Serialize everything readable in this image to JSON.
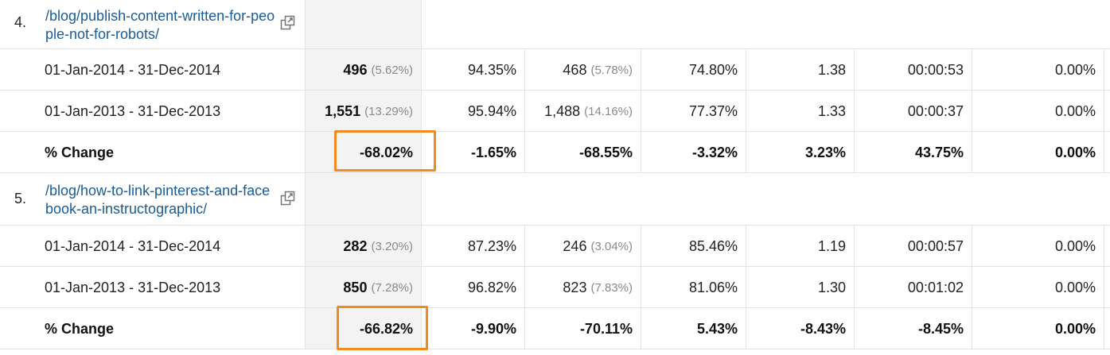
{
  "accent_color": "#f28a1e",
  "link_color": "#1a5c96",
  "groups": [
    {
      "rank": "4.",
      "page": "/blog/publish-content-written-for-people-not-for-robots/",
      "rows": [
        {
          "label": "01-Jan-2014 - 31-Dec-2014",
          "sessions": "496",
          "sessions_pct": "(5.62%)",
          "c2": "94.35%",
          "c3": "468",
          "c3_pct": "(5.78%)",
          "c4": "74.80%",
          "c5": "1.38",
          "c6": "00:00:53",
          "c7": "0.00%"
        },
        {
          "label": "01-Jan-2013 - 31-Dec-2013",
          "sessions": "1,551",
          "sessions_pct": "(13.29%)",
          "c2": "95.94%",
          "c3": "1,488",
          "c3_pct": "(14.16%)",
          "c4": "77.37%",
          "c5": "1.33",
          "c6": "00:00:37",
          "c7": "0.00%"
        }
      ],
      "change": {
        "label": "% Change",
        "sessions": "-68.02%",
        "c2": "-1.65%",
        "c3": "-68.55%",
        "c4": "-3.32%",
        "c5": "3.23%",
        "c6": "43.75%",
        "c7": "0.00%"
      }
    },
    {
      "rank": "5.",
      "page": "/blog/how-to-link-pinterest-and-facebook-an-instructographic/",
      "rows": [
        {
          "label": "01-Jan-2014 - 31-Dec-2014",
          "sessions": "282",
          "sessions_pct": "(3.20%)",
          "c2": "87.23%",
          "c3": "246",
          "c3_pct": "(3.04%)",
          "c4": "85.46%",
          "c5": "1.19",
          "c6": "00:00:57",
          "c7": "0.00%"
        },
        {
          "label": "01-Jan-2013 - 31-Dec-2013",
          "sessions": "850",
          "sessions_pct": "(7.28%)",
          "c2": "96.82%",
          "c3": "823",
          "c3_pct": "(7.83%)",
          "c4": "81.06%",
          "c5": "1.30",
          "c6": "00:01:02",
          "c7": "0.00%"
        }
      ],
      "change": {
        "label": "% Change",
        "sessions": "-66.82%",
        "c2": "-9.90%",
        "c3": "-70.11%",
        "c4": "5.43%",
        "c5": "-8.43%",
        "c6": "-8.45%",
        "c7": "0.00%"
      }
    }
  ]
}
